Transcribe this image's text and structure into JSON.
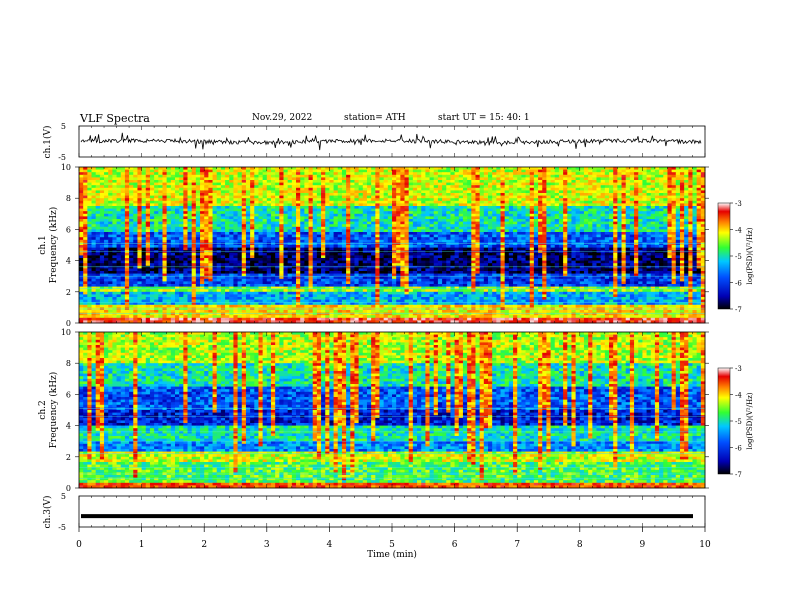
{
  "header": {
    "title": "VLF  Spectra",
    "date": "Nov.29, 2022",
    "station": "station= ATH",
    "start": "start  UT  =   15: 40: 1"
  },
  "chart_data": [
    {
      "type": "line",
      "ylabel": "ch.1(V)",
      "ylim": [
        -5,
        5
      ],
      "yticks": [
        "5",
        "-5"
      ],
      "xlim": [
        0,
        10
      ],
      "note": "broadband voltage waveform, baseline near 0 V with dense spikes"
    },
    {
      "type": "heatmap",
      "ylabel": "Frequency  (kHz)",
      "channel_label": "ch.1",
      "ylim": [
        0,
        10
      ],
      "yticks": [
        "0",
        "2",
        "4",
        "6",
        "8",
        "10"
      ],
      "xlim": [
        0,
        10
      ],
      "colorbar": {
        "label": "log(PSD)(V²/Hz)",
        "range": [
          -7,
          -3
        ],
        "ticks": [
          "-3",
          "-4",
          "-5",
          "-6",
          "-7"
        ]
      },
      "colormap": [
        "#000000",
        "#0000b4",
        "#0050ff",
        "#00c8ff",
        "#32ff32",
        "#ffff00",
        "#ff8000",
        "#e60000",
        "#ffffff"
      ],
      "bands_khz": [
        {
          "f": [
            0,
            0.3
          ],
          "level": -3.5
        },
        {
          "f": [
            0.3,
            1.1
          ],
          "level": -4.4
        },
        {
          "f": [
            1.1,
            2.0
          ],
          "level": -5.6
        },
        {
          "f": [
            2.0,
            2.4
          ],
          "level": -4.8
        },
        {
          "f": [
            2.4,
            3.2
          ],
          "level": -6.1
        },
        {
          "f": [
            3.2,
            4.8
          ],
          "level": -6.7
        },
        {
          "f": [
            4.8,
            5.8
          ],
          "level": -6.0
        },
        {
          "f": [
            5.8,
            7.5
          ],
          "level": -5.3
        },
        {
          "f": [
            7.5,
            10
          ],
          "level": -4.6
        }
      ]
    },
    {
      "type": "heatmap",
      "ylabel": "Frequency  (kHz)",
      "channel_label": "ch.2",
      "ylim": [
        0,
        10
      ],
      "yticks": [
        "0",
        "2",
        "4",
        "6",
        "8",
        "10"
      ],
      "xlim": [
        0,
        10
      ],
      "colorbar": {
        "label": "log(PSD)(V²/Hz)",
        "range": [
          -7,
          -3
        ],
        "ticks": [
          "-3",
          "-4",
          "-5",
          "-6",
          "-7"
        ]
      },
      "bands_khz": [
        {
          "f": [
            0,
            0.3
          ],
          "level": -3.8
        },
        {
          "f": [
            0.3,
            1.7
          ],
          "level": -5.0
        },
        {
          "f": [
            1.7,
            2.3
          ],
          "level": -4.6
        },
        {
          "f": [
            2.3,
            3.0
          ],
          "level": -5.8
        },
        {
          "f": [
            3.0,
            4.0
          ],
          "level": -5.3
        },
        {
          "f": [
            4.0,
            5.0
          ],
          "level": -6.3
        },
        {
          "f": [
            5.0,
            6.5
          ],
          "level": -6.0
        },
        {
          "f": [
            6.5,
            8.0
          ],
          "level": -5.3
        },
        {
          "f": [
            8.0,
            10
          ],
          "level": -4.7
        }
      ]
    },
    {
      "type": "line",
      "ylabel": "ch.3(V)",
      "ylim": [
        -5,
        5
      ],
      "yticks": [
        "5",
        "-5"
      ],
      "xlim": [
        0,
        10
      ],
      "xlabel": "Time  (min)",
      "xticks": [
        "0",
        "1",
        "2",
        "3",
        "4",
        "5",
        "6",
        "7",
        "8",
        "9",
        "10"
      ],
      "value": -1.5,
      "note": "flat thick line at about -1.5 V"
    }
  ]
}
